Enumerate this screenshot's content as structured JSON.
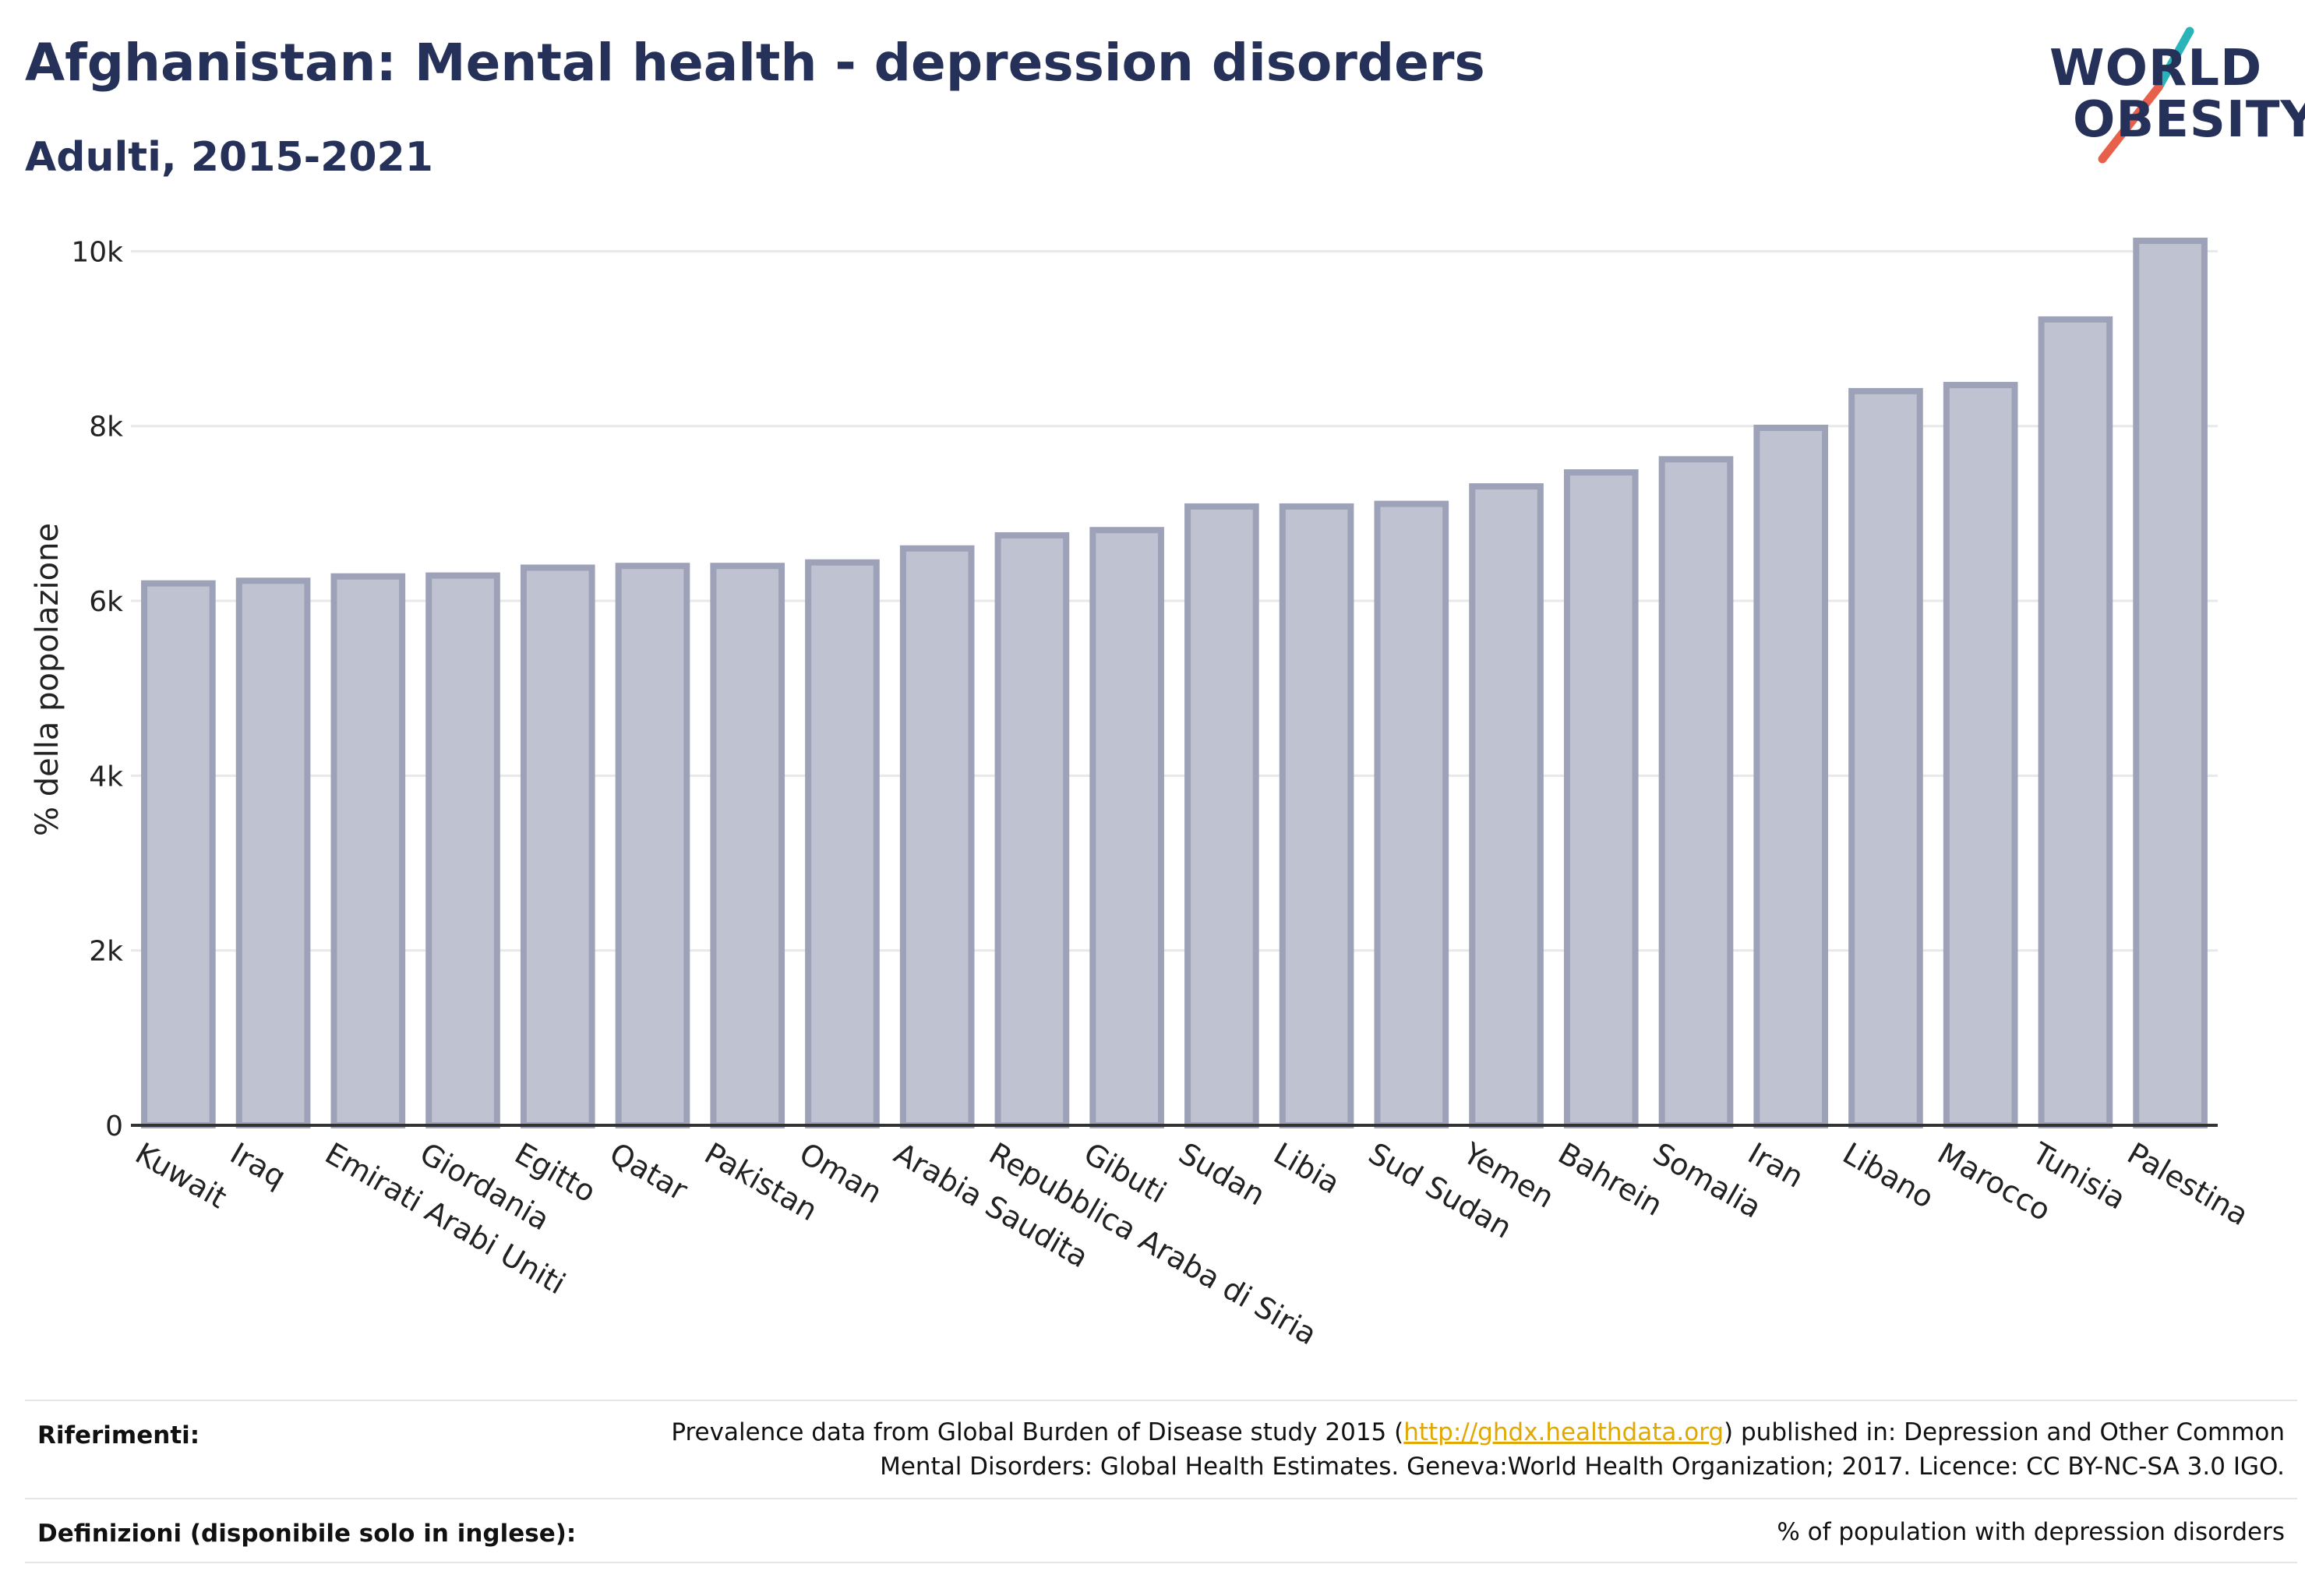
{
  "header": {
    "title": "Afghanistan: Mental health - depression disorders",
    "subtitle": "Adulti, 2015-2021"
  },
  "logo": {
    "line1": "WORLD",
    "line2": "OBESITY",
    "colors": {
      "text": "#263159",
      "slash_top": "#2ab3b8",
      "slash_bottom": "#e8604c"
    }
  },
  "chart_data": {
    "type": "bar",
    "ylabel": "% della popolazione",
    "xlabel": "",
    "ylim": [
      0,
      10200
    ],
    "y_ticks": [
      0,
      2000,
      4000,
      6000,
      8000,
      10000
    ],
    "y_tick_labels": [
      "0",
      "2k",
      "4k",
      "6k",
      "8k",
      "10k"
    ],
    "grid": true,
    "bar_color": "#bfc2d0",
    "bar_edge_color": "#9da2b8",
    "categories": [
      "Kuwait",
      "Iraq",
      "Emirati Arabi Uniti",
      "Giordania",
      "Egitto",
      "Qatar",
      "Pakistan",
      "Oman",
      "Arabia Saudita",
      "Repubblica Araba di Siria",
      "Gibuti",
      "Sudan",
      "Libia",
      "Sud Sudan",
      "Yemen",
      "Bahrein",
      "Somalia",
      "Iran",
      "Libano",
      "Marocco",
      "Tunisia",
      "Palestina"
    ],
    "values": [
      6200,
      6230,
      6280,
      6290,
      6380,
      6400,
      6400,
      6440,
      6600,
      6750,
      6810,
      7080,
      7080,
      7110,
      7310,
      7470,
      7620,
      7980,
      8400,
      8470,
      9220,
      10120
    ]
  },
  "footer": {
    "references_label": "Riferimenti:",
    "references_pre": "Prevalence data from Global Burden of Disease study 2015 (",
    "references_link": "http://ghdx.healthdata.org",
    "references_post": ") published in: Depression and Other Common",
    "references_line2": "Mental Disorders: Global Health Estimates. Geneva:World Health Organization; 2017. Licence: CC BY-NC-SA 3.0 IGO.",
    "definitions_label": "Definizioni (disponibile solo in inglese):",
    "definitions_text": "% of population with depression disorders"
  }
}
